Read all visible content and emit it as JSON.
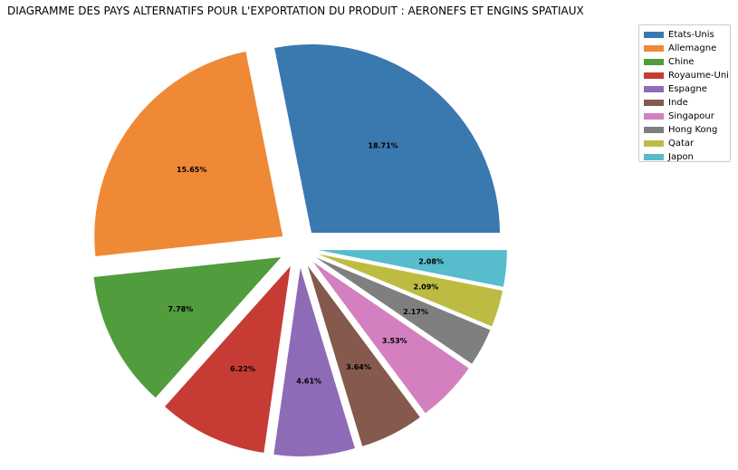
{
  "chart_data": {
    "type": "pie",
    "title": "DIAGRAMME DES PAYS ALTERNATIFS POUR L'EXPORTATION DU PRODUIT : AERONEFS ET ENGINS SPATIAUX",
    "legend_position": "top-right",
    "slices": [
      {
        "label": "Etats-Unis",
        "share": 27.8,
        "pct_label": "18.71%",
        "color": "#3a78b0"
      },
      {
        "label": "Allemagne",
        "share": 23.25,
        "pct_label": "15.65%",
        "color": "#ef8936"
      },
      {
        "label": "Chine",
        "share": 11.56,
        "pct_label": "7.78%",
        "color": "#519c3d"
      },
      {
        "label": "Royaume-Uni",
        "share": 9.24,
        "pct_label": "6.22%",
        "color": "#c63b34"
      },
      {
        "label": "Espagne",
        "share": 6.85,
        "pct_label": "4.61%",
        "color": "#8e6bb6"
      },
      {
        "label": "Inde",
        "share": 5.41,
        "pct_label": "3.64%",
        "color": "#85594d"
      },
      {
        "label": "Singapour",
        "share": 5.24,
        "pct_label": "3.53%",
        "color": "#d47fc0"
      },
      {
        "label": "Hong Kong",
        "share": 3.22,
        "pct_label": "2.17%",
        "color": "#7f7f7f"
      },
      {
        "label": "Qatar",
        "share": 3.11,
        "pct_label": "2.09%",
        "color": "#bdbc42"
      },
      {
        "label": "Japon",
        "share": 3.09,
        "pct_label": "2.08%",
        "color": "#57bccc"
      }
    ]
  }
}
